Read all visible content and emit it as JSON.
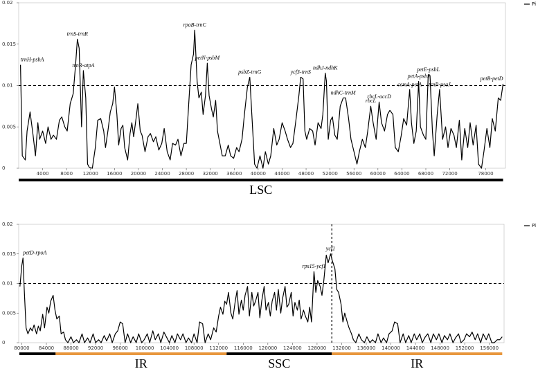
{
  "chart_data": [
    {
      "type": "line",
      "xlim": [
        0,
        81300
      ],
      "ylim": [
        0,
        0.02
      ],
      "xticks": [
        4000,
        8000,
        12000,
        16000,
        20000,
        24000,
        28000,
        32000,
        36000,
        40000,
        44000,
        48000,
        52000,
        56000,
        60000,
        64000,
        68000,
        72000,
        78000
      ],
      "yticks": [
        0,
        0.005,
        0.01,
        0.015,
        0.02
      ],
      "legend": "right",
      "reference_lines": {
        "y": 0.01
      },
      "x": [
        300,
        600,
        1100,
        1400,
        1900,
        2400,
        2800,
        3200,
        3500,
        4000,
        4500,
        4900,
        5400,
        5800,
        6300,
        6800,
        7200,
        7700,
        8100,
        8600,
        9100,
        9500,
        9800,
        10100,
        10500,
        10800,
        11200,
        11500,
        11800,
        12300,
        12800,
        13200,
        13700,
        14200,
        14500,
        14900,
        15300,
        15700,
        16000,
        16400,
        16700,
        17100,
        17400,
        17700,
        18200,
        18600,
        18900,
        19200,
        19600,
        19900,
        20300,
        20600,
        21100,
        21600,
        22000,
        22500,
        22900,
        23400,
        23900,
        24300,
        24800,
        25300,
        25700,
        26200,
        26600,
        27100,
        27600,
        28000,
        28500,
        28800,
        29200,
        29400,
        29800,
        30100,
        30500,
        30800,
        31200,
        31500,
        31800,
        32200,
        32500,
        32900,
        33200,
        33600,
        34000,
        34500,
        35000,
        35400,
        35900,
        36400,
        36800,
        37300,
        37700,
        38200,
        38600,
        38900,
        39400,
        39800,
        40300,
        40800,
        41200,
        41700,
        42100,
        42600,
        43100,
        43500,
        44000,
        44500,
        44900,
        45400,
        45800,
        46300,
        46800,
        47100,
        47500,
        47800,
        48100,
        48600,
        49100,
        49500,
        50000,
        50500,
        50800,
        51200,
        51400,
        51700,
        52100,
        52400,
        52800,
        53200,
        53700,
        54200,
        54600,
        55100,
        55500,
        56000,
        56500,
        56900,
        57400,
        57900,
        58300,
        58800,
        59200,
        59700,
        60200,
        60600,
        61100,
        61600,
        62000,
        62500,
        62900,
        63400,
        63900,
        64300,
        64800,
        65300,
        65600,
        66000,
        66400,
        66800,
        67100,
        67600,
        68000,
        68400,
        68700,
        69100,
        69400,
        69900,
        70300,
        70800,
        71300,
        71700,
        72200,
        72700,
        73100,
        73600,
        74000,
        74500,
        75000,
        75400,
        75900,
        76400,
        76800,
        77300,
        77700,
        78200,
        78700,
        79100,
        79600,
        80100,
        80500,
        80900
      ],
      "series": [
        {
          "name": "Pi",
          "color": "#000000",
          "values": [
            0.0125,
            0.0015,
            0.001,
            0.0045,
            0.0068,
            0.004,
            0.0015,
            0.0055,
            0.0035,
            0.0045,
            0.003,
            0.005,
            0.0035,
            0.004,
            0.0035,
            0.0058,
            0.0062,
            0.005,
            0.0045,
            0.0078,
            0.009,
            0.0125,
            0.0156,
            0.0145,
            0.005,
            0.0118,
            0.0085,
            0.0005,
            0.0001,
            0,
            0.0025,
            0.0058,
            0.006,
            0.0045,
            0.0025,
            0.0045,
            0.0068,
            0.0078,
            0.0098,
            0.0065,
            0.0028,
            0.0048,
            0.0052,
            0.0025,
            0.001,
            0.0042,
            0.0055,
            0.0038,
            0.006,
            0.0078,
            0.0045,
            0.004,
            0.002,
            0.0038,
            0.0042,
            0.0032,
            0.0038,
            0.0022,
            0.003,
            0.0048,
            0.002,
            0.001,
            0.003,
            0.0028,
            0.0035,
            0.0015,
            0.003,
            0.003,
            0.009,
            0.0125,
            0.0138,
            0.0167,
            0.0105,
            0.0085,
            0.0092,
            0.0065,
            0.0088,
            0.0127,
            0.0088,
            0.0072,
            0.0062,
            0.0082,
            0.0045,
            0.003,
            0.0015,
            0.0015,
            0.0028,
            0.0015,
            0.0012,
            0.0025,
            0.002,
            0.0035,
            0.0065,
            0.0098,
            0.011,
            0.007,
            0.0005,
            0,
            0.0015,
            0,
            0.002,
            0.0005,
            0.0015,
            0.0048,
            0.0028,
            0.0035,
            0.0055,
            0.0045,
            0.0035,
            0.0025,
            0.003,
            0.0058,
            0.0088,
            0.011,
            0.0108,
            0.0045,
            0.0035,
            0.0048,
            0.0045,
            0.0028,
            0.0055,
            0.0048,
            0.0065,
            0.0115,
            0.0105,
            0.0035,
            0.0058,
            0.0062,
            0.004,
            0.0035,
            0.0075,
            0.0085,
            0.0085,
            0.006,
            0.0035,
            0.002,
            0.0005,
            0.002,
            0.0035,
            0.0025,
            0.0045,
            0.0075,
            0.0055,
            0.0035,
            0.008,
            0.0055,
            0.0045,
            0.0065,
            0.007,
            0.0065,
            0.0025,
            0.002,
            0.004,
            0.006,
            0.0052,
            0.0095,
            0.0055,
            0.003,
            0.0045,
            0.0105,
            0.005,
            0.004,
            0.0035,
            0.0113,
            0.0112,
            0.0045,
            0.0015,
            0.0065,
            0.0095,
            0.0035,
            0.005,
            0.0025,
            0.0048,
            0.004,
            0.0025,
            0.0058,
            0.001,
            0.0048,
            0.0025,
            0.0055,
            0.0028,
            0.0052,
            0.0005,
            0,
            0.002,
            0.0048,
            0.0025,
            0.006,
            0.0045,
            0.0085,
            0.0082,
            0.0102
          ]
        }
      ],
      "annotations": [
        {
          "text": "trnH-psbA",
          "x": 300
        },
        {
          "text": "trnS-trnR",
          "x": 9800
        },
        {
          "text": "trnR-atpA",
          "x": 10800
        },
        {
          "text": "rpoB-trnC",
          "x": 29400
        },
        {
          "text": "petN-psbM",
          "x": 31500
        },
        {
          "text": "psbZ-trnG",
          "x": 38600
        },
        {
          "text": "ycf3-trnS",
          "x": 47100
        },
        {
          "text": "ndhJ-ndhK",
          "x": 51200
        },
        {
          "text": "ndhC-trnM",
          "x": 54200
        },
        {
          "text": "rbcL",
          "x": 58800
        },
        {
          "text": "rbcL-accD",
          "x": 60200
        },
        {
          "text": "cemA-petA",
          "x": 65300
        },
        {
          "text": "petA-psbJ",
          "x": 66800
        },
        {
          "text": "petE-psbL",
          "x": 68400
        },
        {
          "text": "trnP-psaJ",
          "x": 70300
        },
        {
          "text": "petB-petD",
          "x": 80900
        }
      ],
      "regions": [
        {
          "label": "LSC",
          "start": 0,
          "end": 80900,
          "color": "#000000"
        }
      ]
    },
    {
      "type": "line",
      "xlim": [
        79500,
        158400
      ],
      "ylim": [
        0,
        0.02
      ],
      "xticks": [
        80000,
        84000,
        88000,
        92000,
        96000,
        100000,
        104000,
        108000,
        112000,
        116000,
        120000,
        124000,
        128000,
        132000,
        136000,
        140000,
        144000,
        148000,
        152000,
        156000
      ],
      "yticks": [
        0,
        0.005,
        0.01,
        0.015,
        0.02
      ],
      "legend": "right",
      "reference_lines": {
        "y": 0.01,
        "x": 130400
      },
      "x": [
        79700,
        80000,
        80200,
        80400,
        80700,
        81000,
        81400,
        81700,
        82000,
        82400,
        82700,
        83000,
        83400,
        83700,
        84100,
        84400,
        84700,
        85100,
        85400,
        85700,
        86100,
        86400,
        86800,
        87100,
        87500,
        88000,
        88400,
        88900,
        89300,
        89800,
        90200,
        90700,
        91100,
        91600,
        92000,
        92500,
        92900,
        93400,
        93800,
        94300,
        94700,
        95200,
        95600,
        96000,
        96400,
        96800,
        97200,
        97700,
        98100,
        98600,
        99000,
        99500,
        99900,
        100400,
        100800,
        101300,
        101700,
        102200,
        102600,
        103100,
        103500,
        104000,
        104400,
        104900,
        105300,
        105800,
        106200,
        106700,
        107100,
        107600,
        108000,
        108500,
        108900,
        109400,
        109800,
        110300,
        110700,
        111200,
        111600,
        112000,
        112300,
        112700,
        113000,
        113300,
        113600,
        114000,
        114300,
        114700,
        115000,
        115300,
        115700,
        116000,
        116300,
        116700,
        117000,
        117400,
        117700,
        118000,
        118400,
        118700,
        119000,
        119400,
        119700,
        120100,
        120400,
        120700,
        121100,
        121400,
        121700,
        122100,
        122400,
        122800,
        123100,
        123400,
        123800,
        124100,
        124400,
        124800,
        125100,
        125400,
        125800,
        126100,
        126500,
        126800,
        127100,
        127500,
        127800,
        128100,
        128500,
        128800,
        129100,
        129500,
        129800,
        130200,
        130500,
        130900,
        131200,
        131500,
        131900,
        132200,
        132500,
        132900,
        133200,
        133600,
        133900,
        134300,
        134800,
        135200,
        135700,
        136100,
        136600,
        137000,
        137500,
        137900,
        138400,
        138800,
        139300,
        139700,
        140200,
        140600,
        141100,
        141500,
        142000,
        142400,
        142900,
        143300,
        143800,
        144200,
        144700,
        145100,
        145600,
        146000,
        146500,
        146900,
        147400,
        147800,
        148300,
        148700,
        149200,
        149600,
        150100,
        150500,
        151000,
        151400,
        151900,
        152300,
        152800,
        153200,
        153700,
        154100,
        154600,
        155000,
        155500,
        155900,
        156400,
        156800,
        157300,
        157700,
        158100
      ],
      "series": [
        {
          "name": "Pi",
          "color": "#000000",
          "values": [
            0.0095,
            0.013,
            0.0143,
            0.009,
            0.0025,
            0.0015,
            0.0025,
            0.002,
            0.003,
            0.0015,
            0.0028,
            0.002,
            0.0048,
            0.0025,
            0.006,
            0.005,
            0.007,
            0.008,
            0.0055,
            0.004,
            0.0045,
            0.0015,
            0.0018,
            0.0005,
            0,
            0.001,
            0,
            0.0005,
            0,
            0.0015,
            0,
            0.0008,
            0,
            0.0015,
            0,
            0.0005,
            0,
            0.0012,
            0.0003,
            0.0015,
            0,
            0.0015,
            0.002,
            0.0035,
            0.0032,
            0,
            0.0015,
            0,
            0.001,
            0,
            0.0015,
            0,
            0.0005,
            0.0015,
            0,
            0.002,
            0.0005,
            0.0015,
            0,
            0.0018,
            0.001,
            0,
            0.0012,
            0,
            0.0015,
            0.0005,
            0.0015,
            0,
            0.0008,
            0,
            0.0015,
            0,
            0.0035,
            0.0032,
            0,
            0.0015,
            0.0005,
            0.0025,
            0.0018,
            0.0045,
            0.006,
            0.0048,
            0.007,
            0.0065,
            0.0085,
            0.005,
            0.004,
            0.007,
            0.0088,
            0.0048,
            0.0072,
            0.0055,
            0.008,
            0.0095,
            0.0045,
            0.0085,
            0.0062,
            0.007,
            0.0085,
            0.0042,
            0.007,
            0.0095,
            0.0055,
            0.0068,
            0.0045,
            0.007,
            0.0085,
            0.0055,
            0.009,
            0.005,
            0.0075,
            0.0095,
            0.006,
            0.0065,
            0.0085,
            0.0045,
            0.0068,
            0.0055,
            0.0072,
            0.004,
            0.0055,
            0.0045,
            0.0035,
            0.006,
            0.0035,
            0.012,
            0.0085,
            0.0105,
            0.0095,
            0.008,
            0.0105,
            0.0148,
            0.0135,
            0.015,
            0.0138,
            0.0125,
            0.009,
            0.0085,
            0.0065,
            0.0035,
            0.005,
            0.0035,
            0.0025,
            0.0015,
            0.0005,
            0,
            0.0015,
            0.0005,
            0,
            0.001,
            0,
            0.0005,
            0,
            0.0015,
            0,
            0.0008,
            0,
            0.0015,
            0.002,
            0.0035,
            0.0032,
            0,
            0.0015,
            0,
            0.0012,
            0,
            0.0015,
            0.0005,
            0.0015,
            0,
            0.001,
            0.0015,
            0,
            0.0015,
            0.0005,
            0.0015,
            0,
            0.0012,
            0.0005,
            0.0015,
            0,
            0.0008,
            0.0015,
            0,
            0.0005,
            0.0015,
            0.001,
            0.0018,
            0.0005,
            0.0015,
            0,
            0.0015,
            0.0005,
            0.0015,
            0,
            0,
            0.0005,
            0.0005,
            0.001
          ]
        }
      ],
      "annotations": [
        {
          "text": "petD-rpoA",
          "x": 80200
        },
        {
          "text": "rps15-ycf1",
          "x": 127500
        },
        {
          "text": "ycf1",
          "x": 130200
        }
      ],
      "regions": [
        {
          "start": 79600,
          "end": 85500,
          "color": "#000000"
        },
        {
          "label": "IR",
          "start": 85500,
          "end": 113300,
          "color": "#e8963c"
        },
        {
          "label": "SSC",
          "start": 113300,
          "end": 130400,
          "color": "#000000"
        },
        {
          "label": "IR",
          "start": 130400,
          "end": 158100,
          "color": "#e8963c"
        }
      ]
    }
  ]
}
